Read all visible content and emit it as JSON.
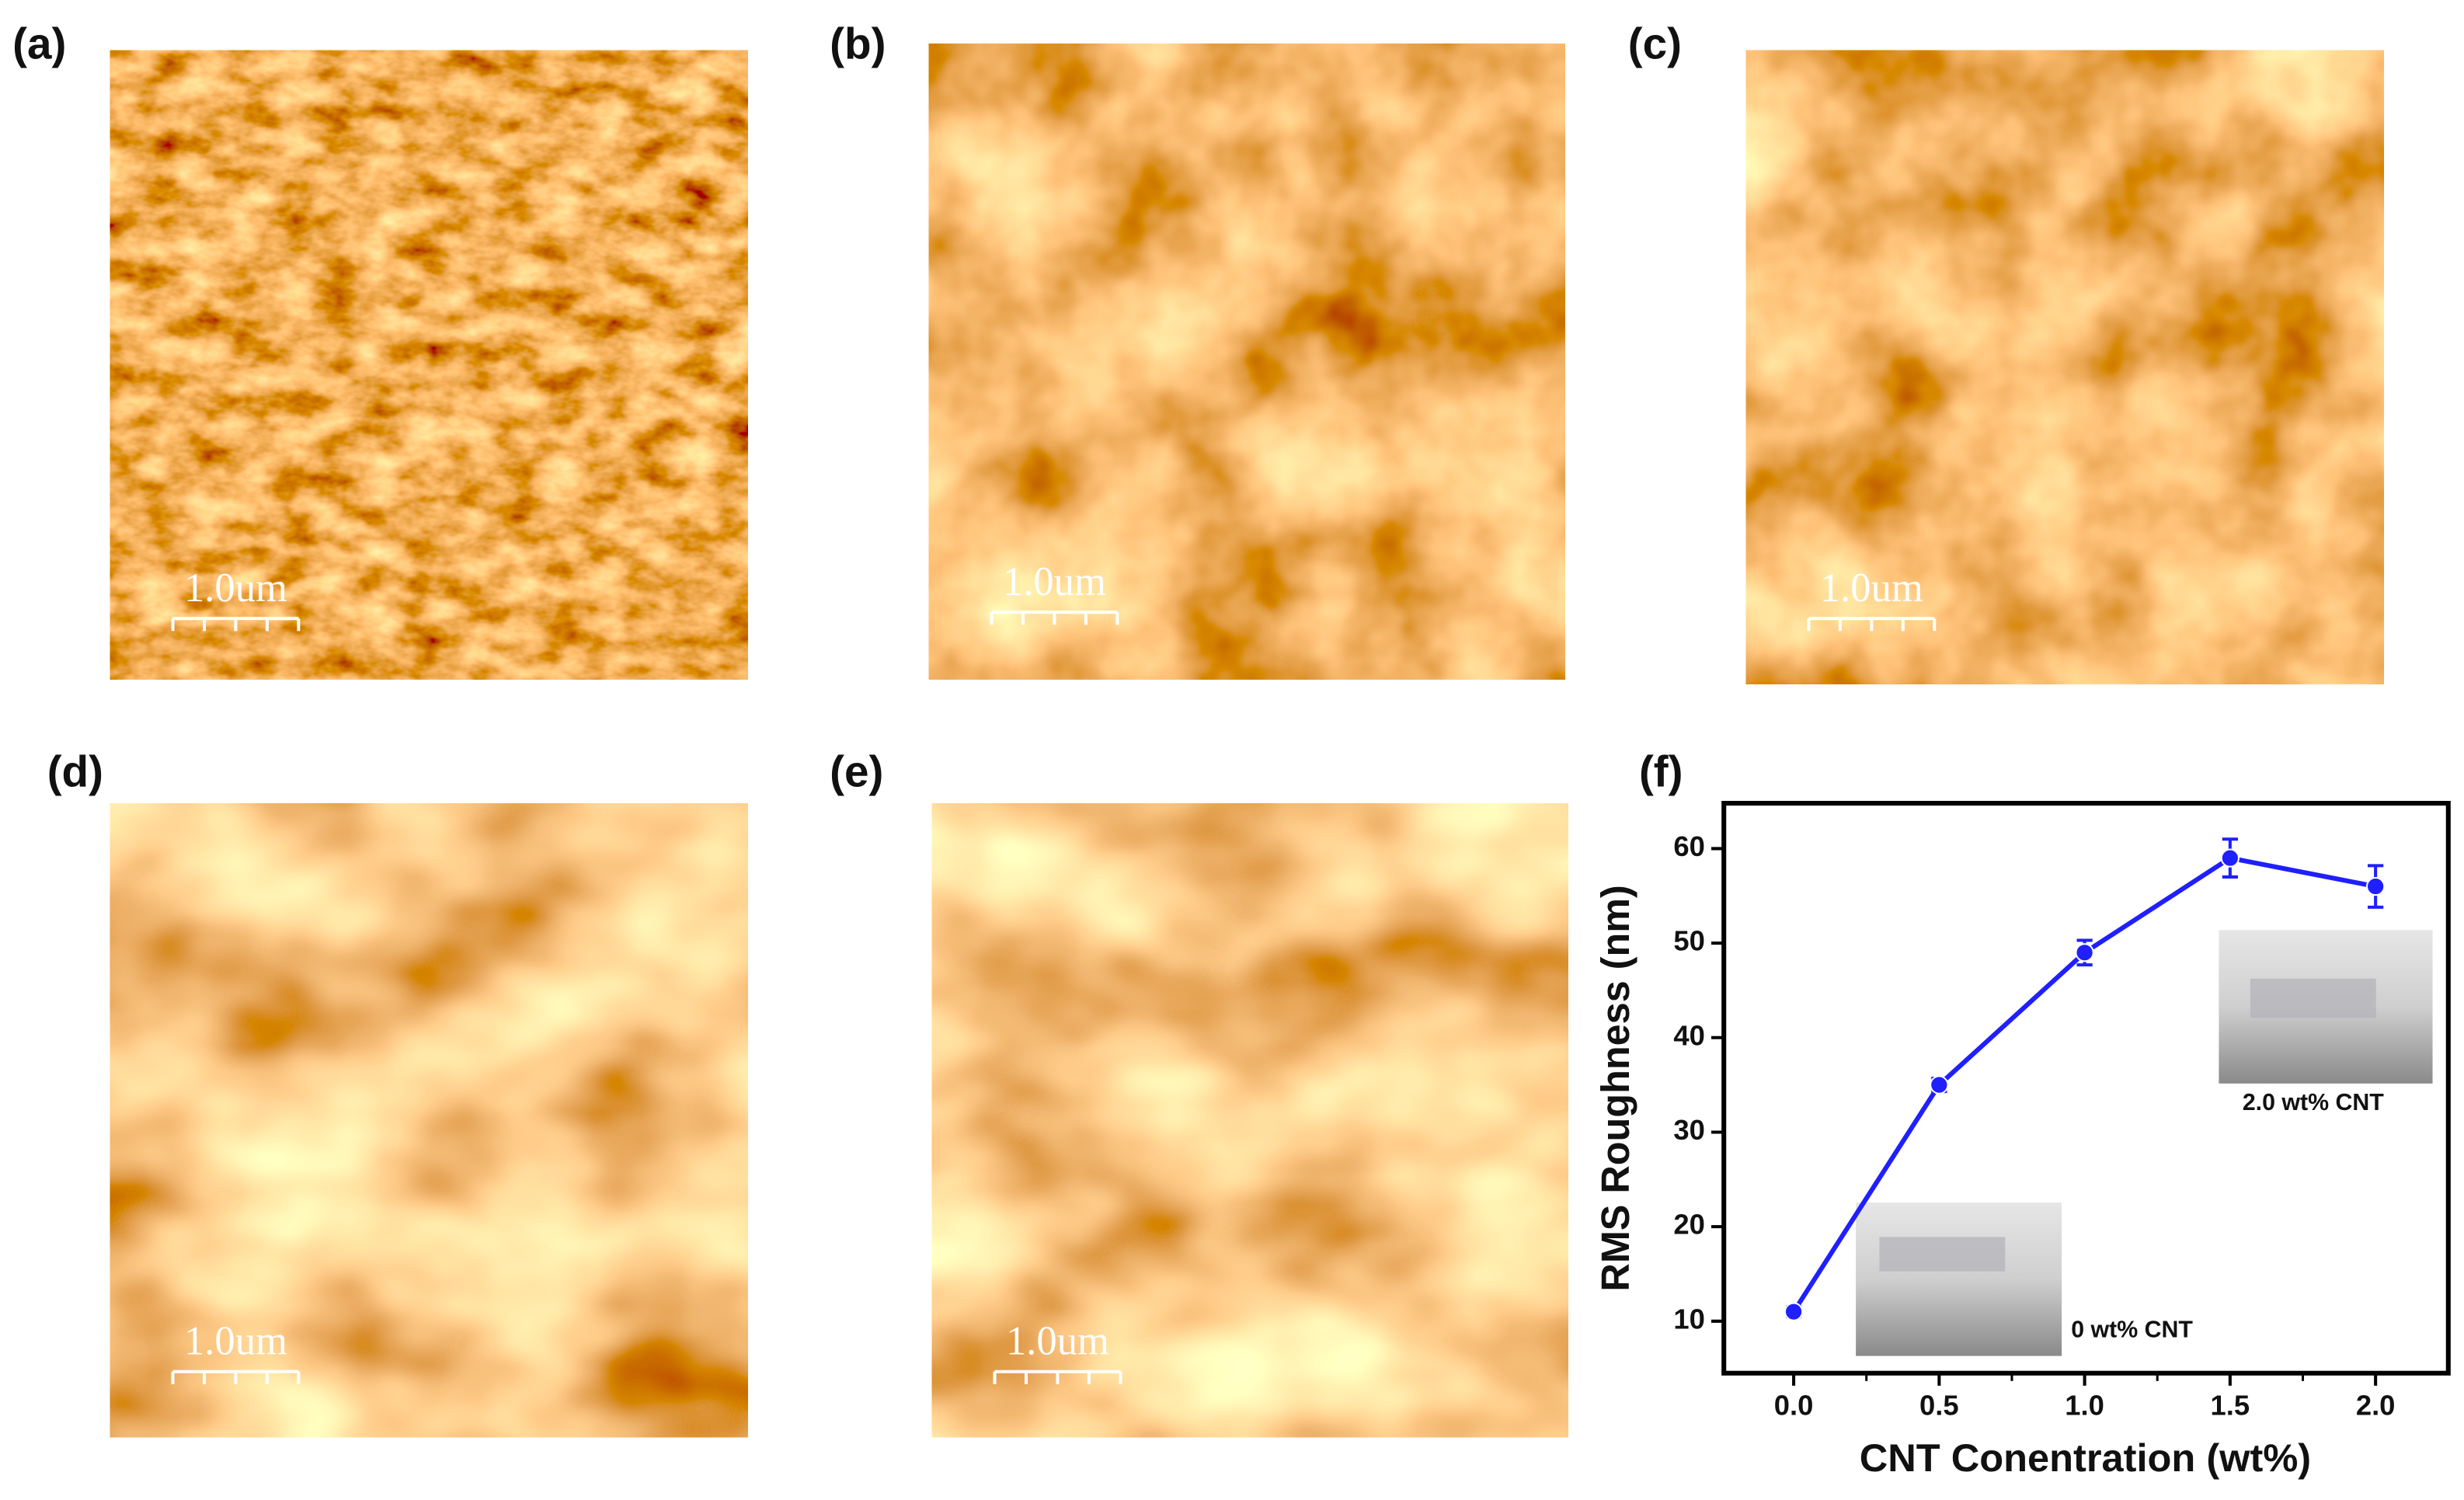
{
  "panels": [
    {
      "label": "(a)",
      "scale_bar": "1.0um"
    },
    {
      "label": "(b)",
      "scale_bar": "1.0um"
    },
    {
      "label": "(c)",
      "scale_bar": "1.0um"
    },
    {
      "label": "(d)",
      "scale_bar": "1.0um"
    },
    {
      "label": "(e)",
      "scale_bar": "1.0um"
    }
  ],
  "chart_data": {
    "type": "line",
    "panel_label": "(f)",
    "x_label": "CNT Conentration (wt%)",
    "y_label": "RMS Roughness (nm)",
    "x": [
      0.0,
      0.5,
      1.0,
      1.5,
      2.0
    ],
    "series": [
      {
        "color": "#1f1fff",
        "values": [
          11,
          35,
          49,
          59,
          56
        ],
        "errors": [
          0.5,
          0.7,
          1.3,
          2,
          2.2
        ]
      }
    ],
    "xlim": [
      -0.24,
      2.25
    ],
    "ylim": [
      4.5,
      64.8
    ],
    "xticks": [
      {
        "value": 0,
        "label": "0.0"
      },
      {
        "value": 0.5,
        "label": "0.5"
      },
      {
        "value": 1,
        "label": "1.0"
      },
      {
        "value": 1.5,
        "label": "1.5"
      },
      {
        "value": 2,
        "label": "2.0"
      }
    ],
    "yticks": [
      10,
      20,
      30,
      40,
      50,
      60
    ],
    "annotations": [
      "0 wt% CNT",
      "2.0 wt% CNT"
    ]
  }
}
